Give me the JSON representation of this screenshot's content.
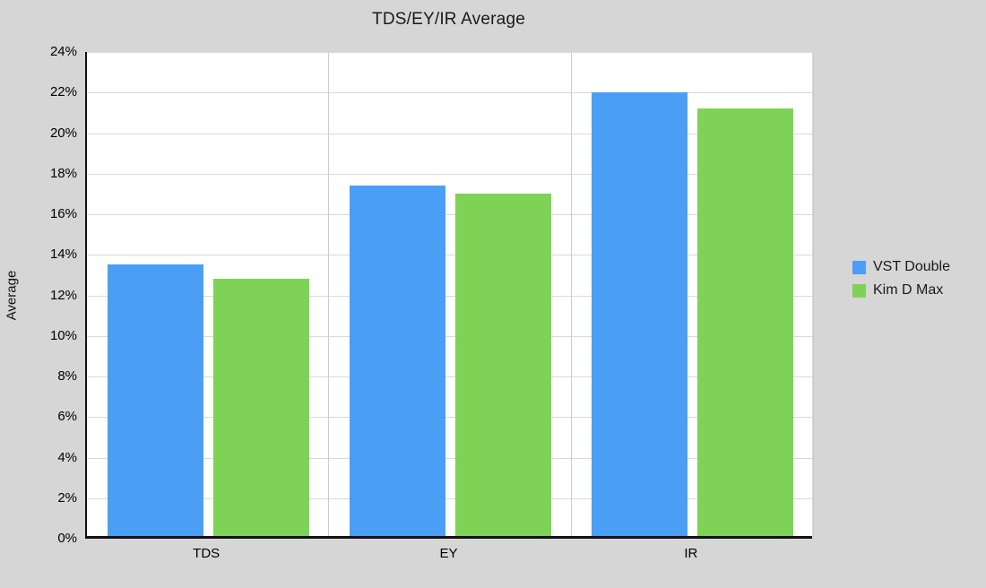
{
  "chart_data": {
    "type": "bar",
    "title": "TDS/EY/IR Average",
    "categories": [
      "TDS",
      "EY",
      "IR"
    ],
    "series": [
      {
        "name": "VST Double",
        "color": "#4a9ff5",
        "values": [
          13.4,
          17.3,
          21.9
        ]
      },
      {
        "name": "Kim D Max",
        "color": "#7ed356",
        "values": [
          12.7,
          16.9,
          21.1
        ]
      }
    ],
    "xlabel": "",
    "ylabel": "Average",
    "ylim": [
      0,
      24
    ],
    "ytick_step": 2,
    "ytick_format": "percent",
    "grid": true,
    "legend_position": "right",
    "colors": {
      "page_background": "#d6d6d6",
      "plot_background": "#ffffff",
      "gridline": "#d9d9d9",
      "category_separator": "#cccccc",
      "axis": "#111111",
      "text": "#000000"
    }
  }
}
